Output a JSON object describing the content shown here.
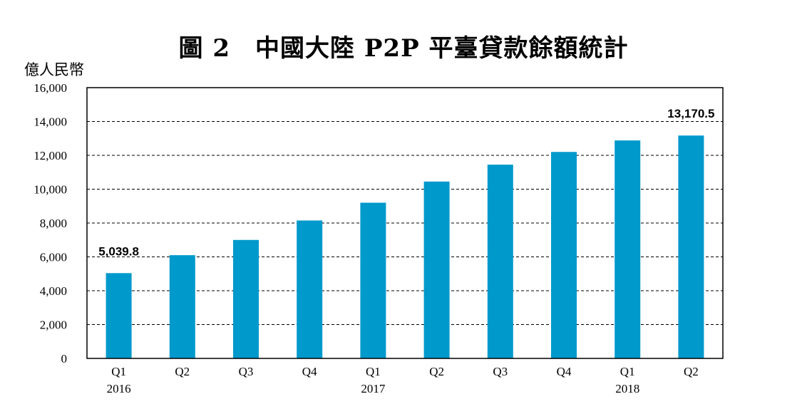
{
  "chart_data": {
    "type": "bar",
    "title": "圖 2　中國大陸 P2P 平臺貸款餘額統計",
    "ylabel": "億人民幣",
    "xlabel": "",
    "categories": [
      "Q1",
      "Q2",
      "Q3",
      "Q4",
      "Q1",
      "Q2",
      "Q3",
      "Q4",
      "Q1",
      "Q2"
    ],
    "years": [
      {
        "label": "2016",
        "at_index": 0
      },
      {
        "label": "2017",
        "at_index": 4
      },
      {
        "label": "2018",
        "at_index": 8
      }
    ],
    "values": [
      5039.8,
      6100,
      7000,
      8150,
      9200,
      10450,
      11450,
      12200,
      12880,
      13170.5
    ],
    "data_labels": [
      {
        "index": 0,
        "text": "5,039.8"
      },
      {
        "index": 9,
        "text": "13,170.5"
      }
    ],
    "ylim": [
      0,
      16000
    ],
    "yticks": [
      0,
      2000,
      4000,
      6000,
      8000,
      10000,
      12000,
      14000,
      16000
    ],
    "ytick_labels": [
      "0",
      "2,000",
      "4,000",
      "6,000",
      "8,000",
      "10,000",
      "12,000",
      "14,000",
      "16,000"
    ],
    "bar_color": "#0099CC",
    "grid": "horizontal dashed"
  }
}
